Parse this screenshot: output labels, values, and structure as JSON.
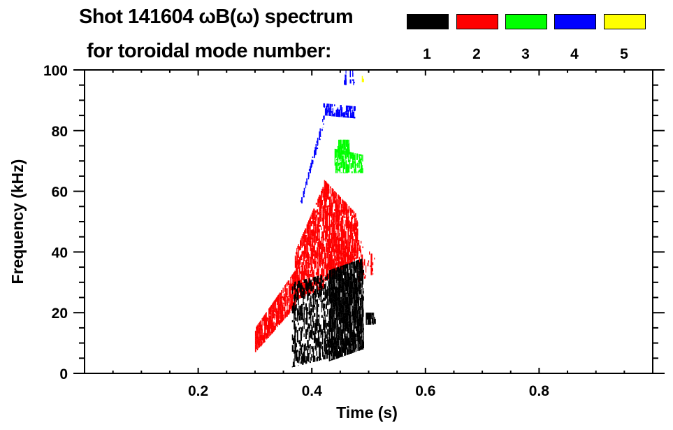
{
  "title": {
    "line1": "Shot 141604 ωB(ω) spectrum",
    "line2": "for toroidal mode number:"
  },
  "legend": [
    {
      "label": "1",
      "color": "#000000"
    },
    {
      "label": "2",
      "color": "#ff0000"
    },
    {
      "label": "3",
      "color": "#00ff00"
    },
    {
      "label": "4",
      "color": "#0000ff"
    },
    {
      "label": "5",
      "color": "#ffff00"
    }
  ],
  "chart_data": {
    "type": "heatmap",
    "title": "Shot 141604 ωB(ω) spectrum for toroidal mode number: 1 2 3 4 5",
    "xlabel": "Time (s)",
    "ylabel": "Frequency (kHz)",
    "xlim": [
      0,
      1
    ],
    "ylim": [
      0,
      100
    ],
    "xticks": [
      0.2,
      0.4,
      0.6,
      0.8
    ],
    "xtick_labels": [
      "0.2",
      "0.4",
      "0.6",
      "0.8"
    ],
    "yticks": [
      0,
      20,
      40,
      60,
      80,
      100
    ],
    "ytick_labels": [
      "0",
      "20",
      "40",
      "60",
      "80",
      "100"
    ],
    "regions": [
      {
        "mode": 2,
        "t": [
          0.3,
          0.37
        ],
        "f_start": [
          7,
          15
        ],
        "f_end": [
          22,
          34
        ],
        "density": 0.8
      },
      {
        "mode": 2,
        "t": [
          0.37,
          0.42
        ],
        "f_start": [
          24,
          40
        ],
        "f_end": [
          28,
          62
        ],
        "density": 0.7
      },
      {
        "mode": 2,
        "t": [
          0.42,
          0.48
        ],
        "f_start": [
          30,
          64
        ],
        "f_end": [
          38,
          52
        ],
        "density": 0.75
      },
      {
        "mode": 2,
        "t": [
          0.48,
          0.51
        ],
        "f_start": [
          30,
          45
        ],
        "f_end": [
          33,
          38
        ],
        "density": 0.25
      },
      {
        "mode": 1,
        "t": [
          0.365,
          0.43
        ],
        "f_start": [
          2,
          30
        ],
        "f_end": [
          5,
          33
        ],
        "density": 0.45
      },
      {
        "mode": 1,
        "t": [
          0.43,
          0.49
        ],
        "f_start": [
          4,
          34
        ],
        "f_end": [
          8,
          38
        ],
        "density": 0.9
      },
      {
        "mode": 1,
        "t": [
          0.495,
          0.51
        ],
        "f_start": [
          16,
          20
        ],
        "f_end": [
          16,
          20
        ],
        "density": 0.8
      },
      {
        "mode": 3,
        "t": [
          0.44,
          0.49
        ],
        "f_start": [
          66,
          74
        ],
        "f_end": [
          66,
          72
        ],
        "density": 0.6
      },
      {
        "mode": 3,
        "t": [
          0.445,
          0.465
        ],
        "f_start": [
          72,
          77
        ],
        "f_end": [
          72,
          77
        ],
        "density": 0.7
      },
      {
        "mode": 4,
        "t": [
          0.38,
          0.42
        ],
        "f_start": [
          55,
          57
        ],
        "f_end": [
          82,
          85
        ],
        "density": 0.7
      },
      {
        "mode": 4,
        "t": [
          0.42,
          0.475
        ],
        "f_start": [
          85,
          89
        ],
        "f_end": [
          84,
          88
        ],
        "density": 0.6
      },
      {
        "mode": 4,
        "t": [
          0.455,
          0.475
        ],
        "f_start": [
          95,
          100
        ],
        "f_end": [
          95,
          100
        ],
        "density": 0.3
      },
      {
        "mode": 5,
        "t": [
          0.488,
          0.49
        ],
        "f_start": [
          96,
          98
        ],
        "f_end": [
          96,
          98
        ],
        "density": 0.5
      }
    ]
  }
}
